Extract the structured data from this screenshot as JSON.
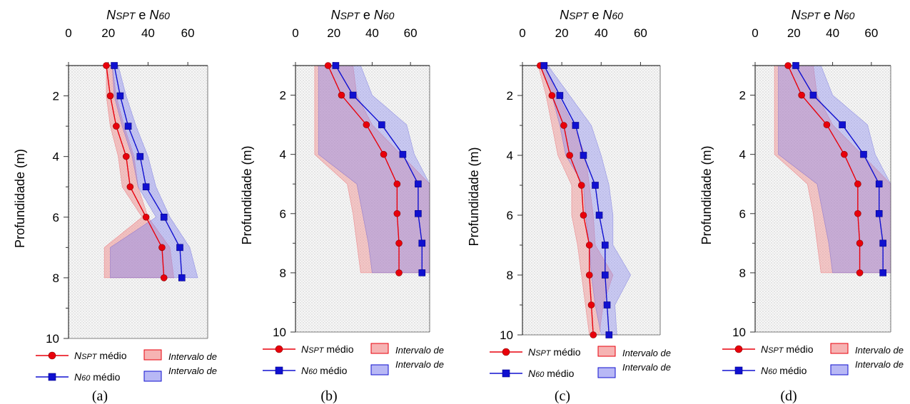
{
  "figure": {
    "legend_labels": {
      "nspt_symbol": "NSPT",
      "nspt_suffix": " médio",
      "n60_symbol": "N60",
      "n60_suffix": " médio",
      "nspt_interval": "Intervalo de",
      "n60_interval": "Intervalo de"
    }
  },
  "colors": {
    "nspt": "#e8000b",
    "n60": "#1010d0",
    "nspt_band": "#f08080",
    "n60_band": "#8888ee",
    "plot_bg": "#efefef"
  },
  "chart_data": [
    {
      "type": "line",
      "caption": "(a)",
      "title": {
        "sym1": "NSPT",
        "mid": " e ",
        "sym2": "N60"
      },
      "ylabel": "Profundidade (m)",
      "xlim": [
        0,
        70
      ],
      "ylim": [
        10,
        1
      ],
      "xticks": [
        0,
        20,
        40,
        60
      ],
      "yticks": [
        2,
        4,
        6,
        8,
        10
      ],
      "grid": false,
      "legend_position": "bottom",
      "depth": [
        1,
        2,
        3,
        4,
        5,
        6,
        7,
        8
      ],
      "series": [
        {
          "name": "NSPT médio",
          "marker": "circle",
          "values": [
            19,
            21,
            24,
            29,
            31,
            39,
            47,
            48
          ]
        },
        {
          "name": "N60 médio",
          "marker": "square",
          "values": [
            23,
            26,
            30,
            36,
            39,
            48,
            56,
            57
          ]
        }
      ],
      "bands": [
        {
          "series": "NSPT",
          "lower": [
            19,
            19,
            21,
            25,
            27,
            37,
            18,
            18
          ],
          "upper": [
            22,
            24,
            28,
            33,
            35,
            40,
            51,
            53
          ]
        },
        {
          "series": "N60",
          "lower": [
            22,
            23,
            27,
            32,
            35,
            44,
            21,
            21
          ],
          "upper": [
            25,
            29,
            34,
            40,
            44,
            51,
            61,
            65
          ]
        }
      ]
    },
    {
      "type": "line",
      "caption": "(b)",
      "title": {
        "sym1": "NSPT",
        "mid": " e ",
        "sym2": "N60"
      },
      "ylabel": "Profundidade (m)",
      "xlim": [
        0,
        70
      ],
      "ylim": [
        10,
        1
      ],
      "xticks": [
        0,
        20,
        40,
        60
      ],
      "yticks": [
        2,
        4,
        6,
        8,
        10
      ],
      "grid": false,
      "legend_position": "bottom",
      "depth": [
        1,
        2,
        3,
        4,
        5,
        6,
        7,
        8
      ],
      "series": [
        {
          "name": "NSPT médio",
          "marker": "circle",
          "values": [
            17,
            24,
            37,
            46,
            53,
            53,
            54,
            54
          ]
        },
        {
          "name": "N60 médio",
          "marker": "square",
          "values": [
            21,
            30,
            45,
            56,
            64,
            64,
            66,
            66
          ]
        }
      ],
      "bands": [
        {
          "series": "NSPT",
          "lower": [
            10,
            10,
            10,
            10,
            27,
            30,
            32,
            34
          ],
          "upper": [
            30,
            32,
            40,
            55,
            70,
            70,
            70,
            70
          ]
        },
        {
          "series": "N60",
          "lower": [
            12,
            12,
            12,
            12,
            32,
            35,
            38,
            40
          ],
          "upper": [
            34,
            40,
            58,
            62,
            70,
            70,
            70,
            70
          ]
        }
      ]
    },
    {
      "type": "line",
      "caption": "(c)",
      "title": {
        "sym1": "NSPT",
        "mid": " e ",
        "sym2": "N60"
      },
      "ylabel": "Profundidade (m)",
      "xlim": [
        0,
        70
      ],
      "ylim": [
        10,
        1
      ],
      "xticks": [
        0,
        20,
        40,
        60
      ],
      "yticks": [
        2,
        4,
        6,
        8,
        10
      ],
      "grid": false,
      "legend_position": "bottom",
      "depth": [
        1,
        2,
        3,
        4,
        5,
        6,
        7,
        8,
        9,
        10
      ],
      "series": [
        {
          "name": "NSPT médio",
          "marker": "circle",
          "values": [
            9,
            15,
            21,
            24,
            30,
            31,
            34,
            34,
            35,
            36
          ]
        },
        {
          "name": "N60 médio",
          "marker": "square",
          "values": [
            11,
            19,
            27,
            31,
            37,
            39,
            42,
            42,
            43,
            44
          ]
        }
      ],
      "bands": [
        {
          "series": "NSPT",
          "lower": [
            8,
            12,
            15,
            18,
            25,
            25,
            28,
            30,
            32,
            34
          ],
          "upper": [
            11,
            18,
            26,
            32,
            34,
            36,
            37,
            46,
            41,
            39
          ]
        },
        {
          "series": "N60",
          "lower": [
            9,
            15,
            19,
            22,
            31,
            32,
            34,
            35,
            37,
            40
          ],
          "upper": [
            13,
            24,
            35,
            40,
            44,
            46,
            46,
            55,
            47,
            48
          ]
        }
      ]
    },
    {
      "type": "line",
      "caption": "(d)",
      "title": {
        "sym1": "NSPT",
        "mid": " e ",
        "sym2": "N60"
      },
      "ylabel": "Profundidade (m)",
      "xlim": [
        0,
        70
      ],
      "ylim": [
        10,
        1
      ],
      "xticks": [
        0,
        20,
        40,
        60
      ],
      "yticks": [
        2,
        4,
        6,
        8,
        10
      ],
      "grid": false,
      "legend_position": "bottom",
      "depth": [
        1,
        2,
        3,
        4,
        5,
        6,
        7,
        8
      ],
      "series": [
        {
          "name": "NSPT médio",
          "marker": "circle",
          "values": [
            17,
            24,
            37,
            46,
            53,
            53,
            54,
            54
          ]
        },
        {
          "name": "N60 médio",
          "marker": "square",
          "values": [
            21,
            30,
            45,
            56,
            64,
            64,
            66,
            66
          ]
        }
      ],
      "bands": [
        {
          "series": "NSPT",
          "lower": [
            10,
            10,
            10,
            10,
            27,
            30,
            32,
            34
          ],
          "upper": [
            30,
            32,
            40,
            55,
            70,
            70,
            70,
            70
          ]
        },
        {
          "series": "N60",
          "lower": [
            12,
            12,
            12,
            12,
            32,
            35,
            38,
            40
          ],
          "upper": [
            34,
            40,
            58,
            62,
            70,
            70,
            70,
            70
          ]
        }
      ]
    }
  ]
}
